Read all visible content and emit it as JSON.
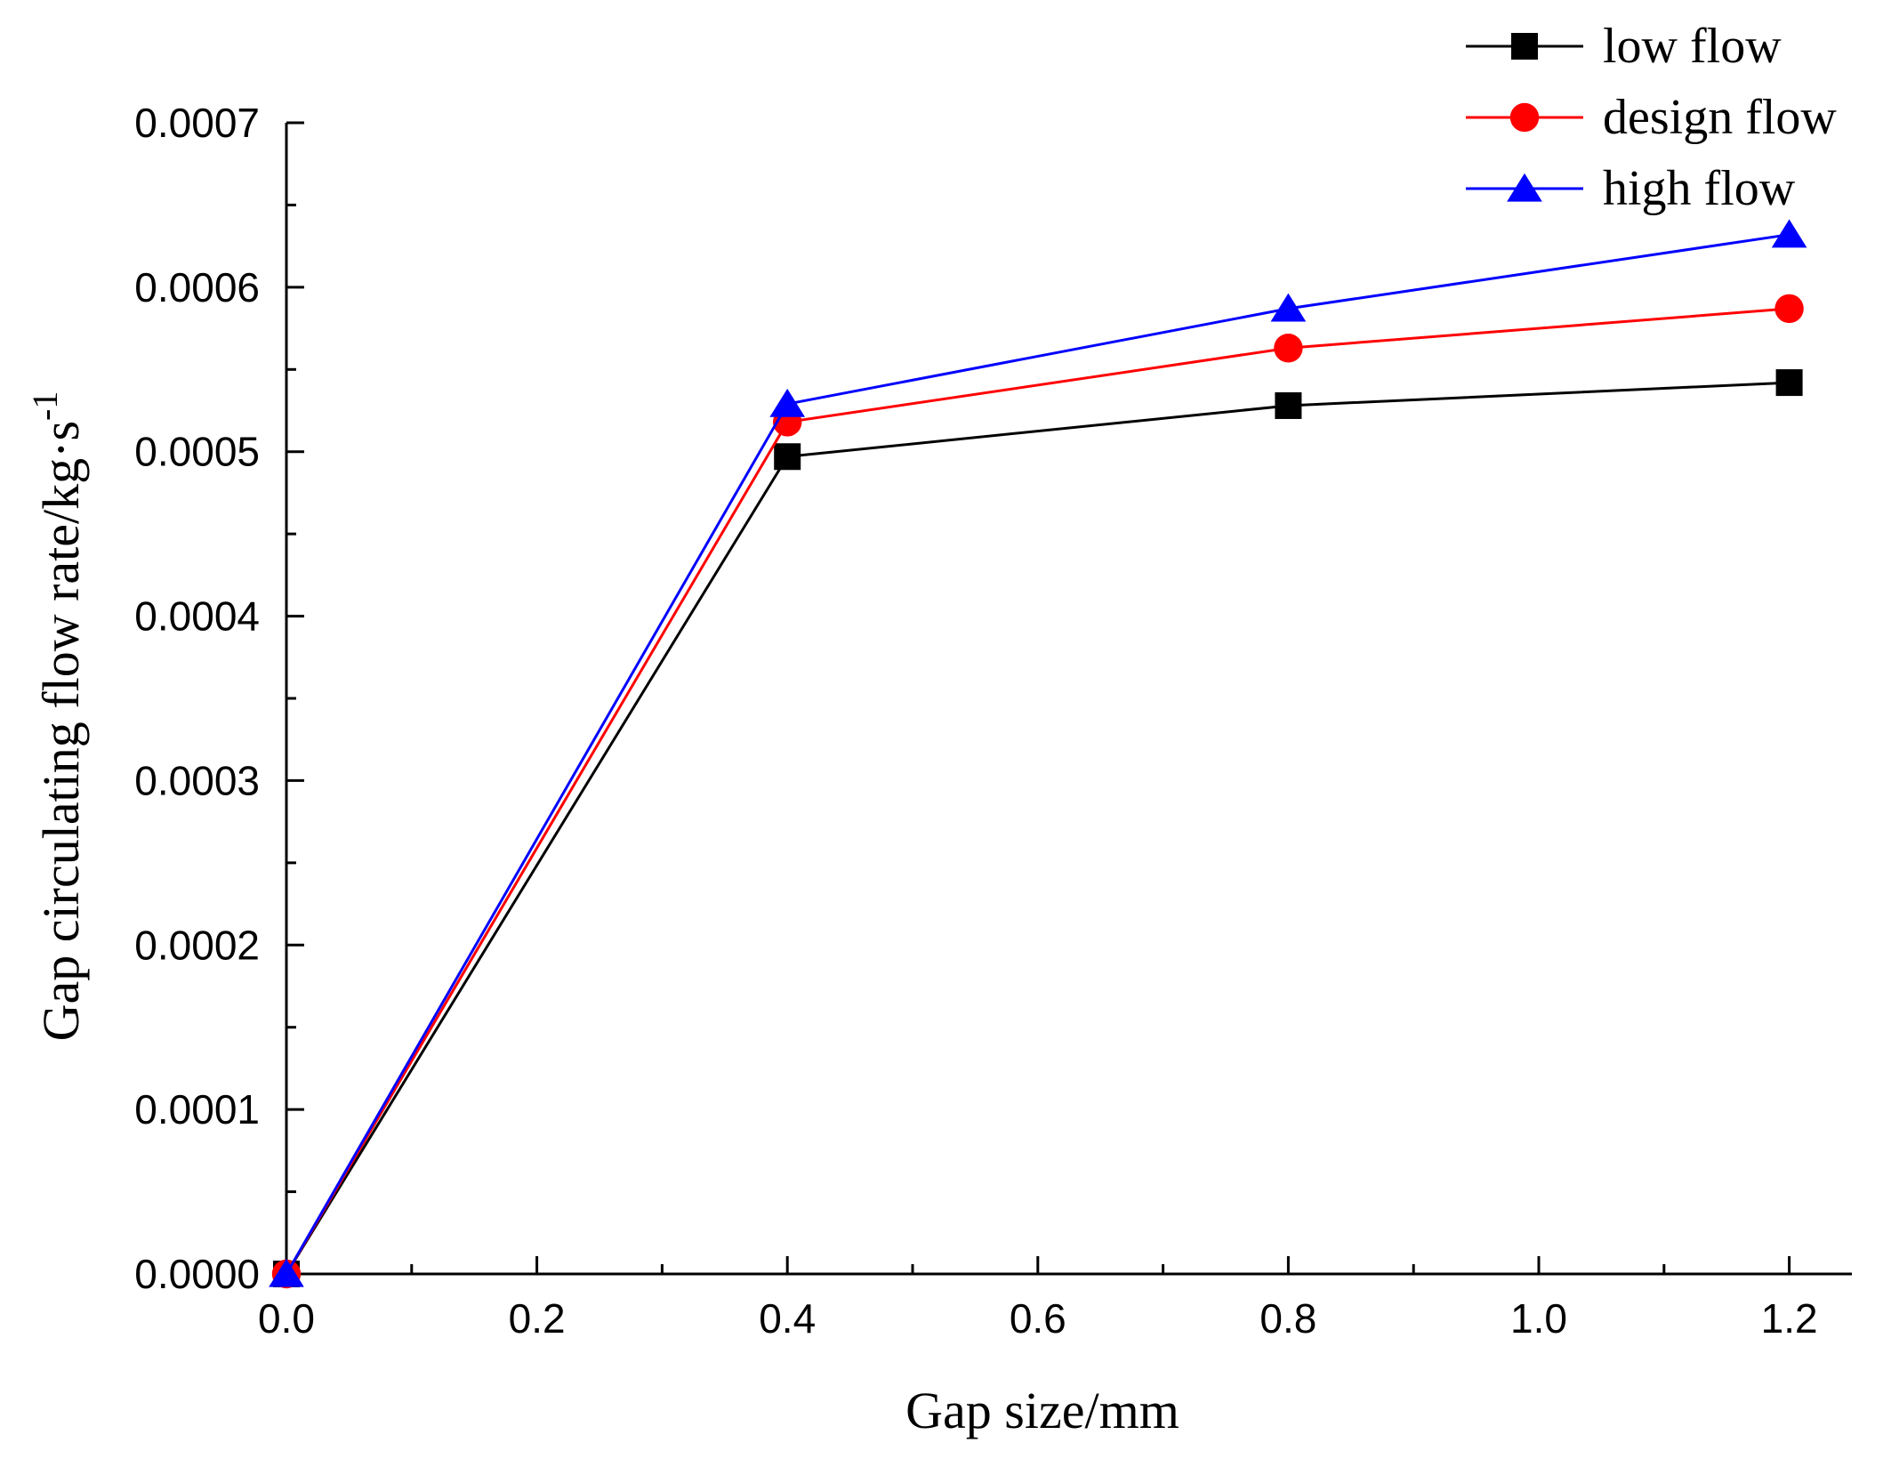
{
  "chart_data": {
    "type": "line",
    "title": "",
    "xlabel": "Gap size/mm",
    "ylabel": "Gap circulating flow rate/kg·s",
    "ylabel_superscript": "-1",
    "xlim": [
      0.0,
      1.25
    ],
    "ylim": [
      0.0,
      0.0007
    ],
    "x_ticks": [
      "0.0",
      "0.2",
      "0.4",
      "0.6",
      "0.8",
      "1.0",
      "1.2"
    ],
    "x_tick_values": [
      0.0,
      0.2,
      0.4,
      0.6,
      0.8,
      1.0,
      1.2
    ],
    "y_ticks": [
      "0.0000",
      "0.0001",
      "0.0002",
      "0.0003",
      "0.0004",
      "0.0005",
      "0.0006",
      "0.0007"
    ],
    "y_tick_values": [
      0.0,
      0.0001,
      0.0002,
      0.0003,
      0.0004,
      0.0005,
      0.0006,
      0.0007
    ],
    "grid": false,
    "legend_position": "top-right",
    "x": [
      0.0,
      0.4,
      0.8,
      1.2
    ],
    "series": [
      {
        "name": "low flow",
        "color": "#000000",
        "marker": "square",
        "values": [
          0.0,
          0.000497,
          0.000528,
          0.000542
        ]
      },
      {
        "name": "design flow",
        "color": "#ff0000",
        "marker": "circle",
        "values": [
          0.0,
          0.000518,
          0.000563,
          0.000587
        ]
      },
      {
        "name": "high flow",
        "color": "#0000ff",
        "marker": "triangle",
        "values": [
          0.0,
          0.000529,
          0.000587,
          0.000632
        ]
      }
    ]
  }
}
